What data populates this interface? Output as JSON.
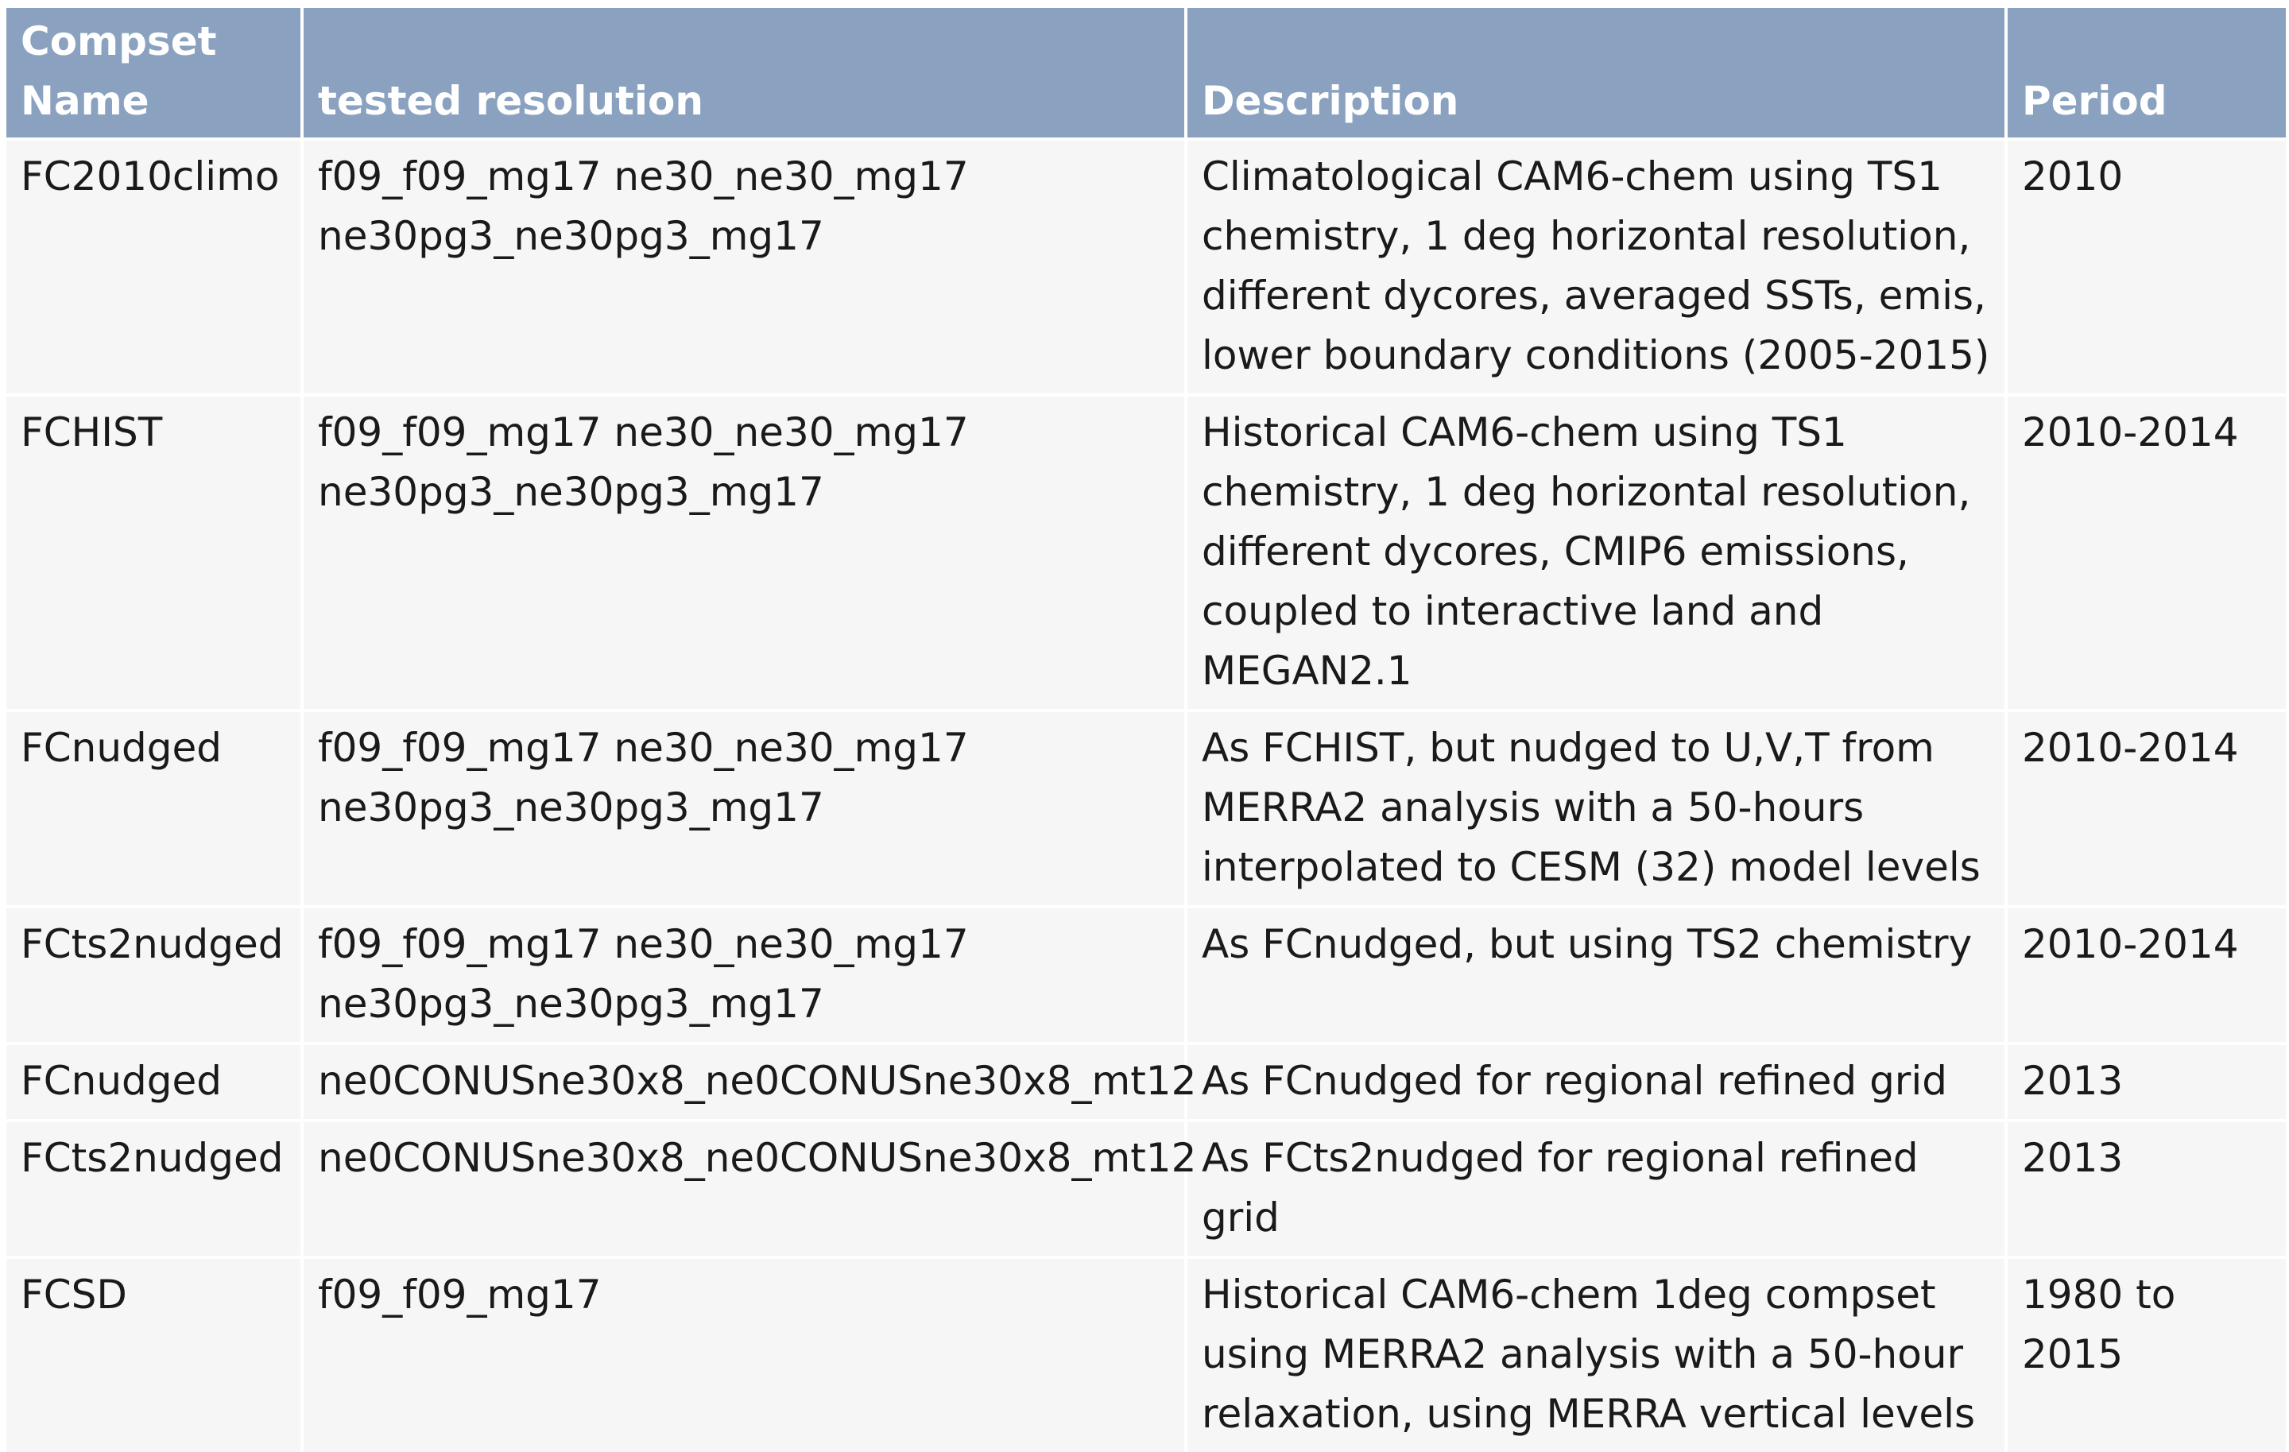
{
  "table": {
    "headers": [
      "Compset\nName",
      "tested resolution",
      "Description",
      "Period"
    ],
    "rows": [
      [
        "FC2010climo",
        "f09_f09_mg17 ne30_ne30_mg17\nne30pg3_ne30pg3_mg17",
        "Climatological CAM6-chem using TS1 chemistry, 1 deg horizontal resolution, different dycores, averaged SSTs, emis, lower boundary conditions (2005-2015)",
        "2010"
      ],
      [
        "FCHIST",
        "f09_f09_mg17 ne30_ne30_mg17\nne30pg3_ne30pg3_mg17",
        "Historical CAM6-chem using TS1 chemistry, 1 deg horizontal resolution, different dycores, CMIP6 emissions, coupled to interactive land and MEGAN2.1",
        "2010-2014"
      ],
      [
        "FCnudged",
        "f09_f09_mg17 ne30_ne30_mg17\nne30pg3_ne30pg3_mg17",
        "As FCHIST, but nudged to U,V,T from MERRA2 analysis with a 50-hours interpolated to CESM (32) model levels",
        "2010-2014"
      ],
      [
        "FCts2nudged",
        "f09_f09_mg17 ne30_ne30_mg17\nne30pg3_ne30pg3_mg17",
        "As FCnudged, but using TS2 chemistry",
        "2010-2014"
      ],
      [
        "FCnudged",
        "ne0CONUSne30x8_ne0CONUSne30x8_mt12",
        "As FCnudged for regional refined grid",
        "2013"
      ],
      [
        "FCts2nudged",
        "ne0CONUSne30x8_ne0CONUSne30x8_mt12",
        "As FCts2nudged for regional refined grid",
        "2013"
      ],
      [
        "FCSD",
        "f09_f09_mg17",
        "Historical CAM6-chem 1deg compset using MERRA2 analysis with a 50-hour relaxation, using MERRA vertical levels",
        "1980 to 2015"
      ]
    ]
  }
}
